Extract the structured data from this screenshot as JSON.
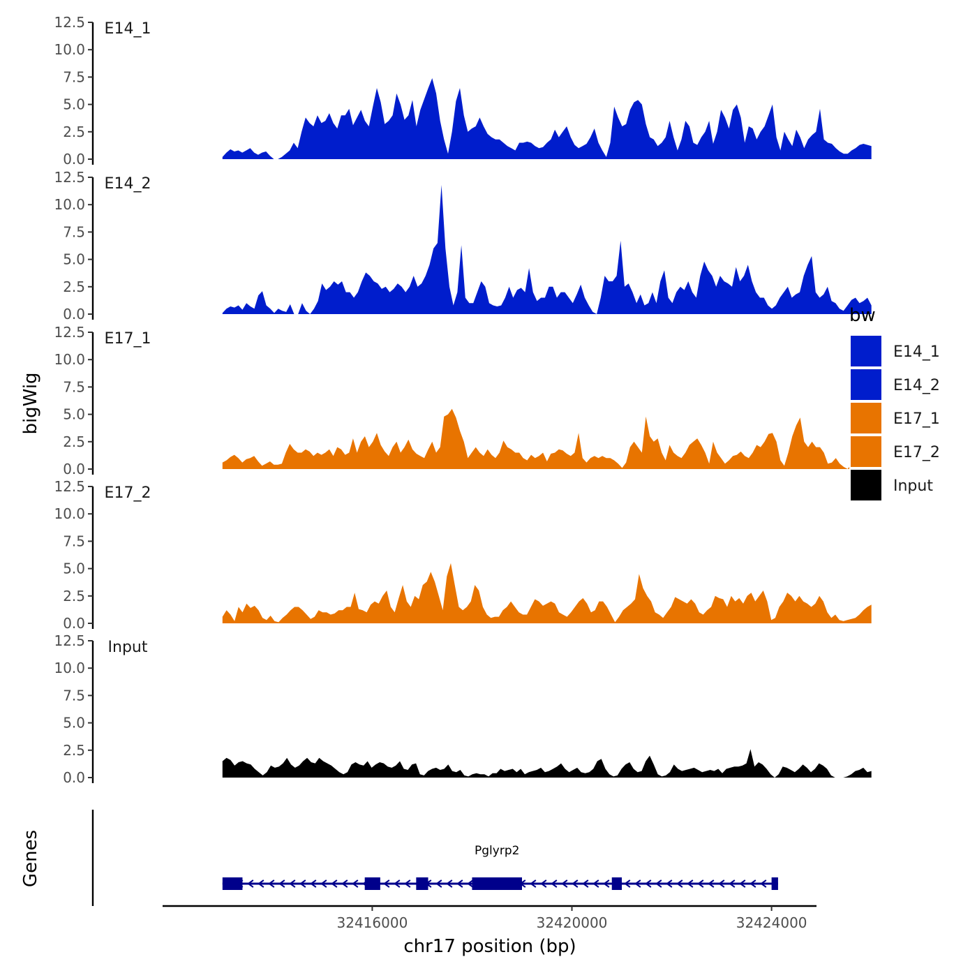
{
  "chart_data": {
    "type": "area",
    "title": "",
    "ylabel": "bigWig",
    "xlabel": "chr17 position (bp)",
    "ylim": [
      0,
      12.5
    ],
    "yticks": [
      "0.0",
      "2.5",
      "5.0",
      "7.5",
      "10.0",
      "12.5"
    ],
    "xlim": [
      32411800,
      32424900
    ],
    "xticks": [
      32416000,
      32420000,
      32424000
    ],
    "xtick_labels": [
      "32416000",
      "32420000",
      "32424000"
    ],
    "x_start": 32413000,
    "x_end": 32426000,
    "tracks": [
      {
        "name": "E14_1",
        "color": "#001DCC",
        "values": [
          0.2,
          0.6,
          0.9,
          0.7,
          0.8,
          0.6,
          0.8,
          1.0,
          0.6,
          0.4,
          0.6,
          0.7,
          0.3,
          0.0,
          0.0,
          0.2,
          0.5,
          0.8,
          1.5,
          1.0,
          2.5,
          3.8,
          3.3,
          3.0,
          4.0,
          3.3,
          3.5,
          4.2,
          3.3,
          2.8,
          4.0,
          4.0,
          4.6,
          3.1,
          3.8,
          4.5,
          3.5,
          3.0,
          4.8,
          6.5,
          5.2,
          3.2,
          3.5,
          4.0,
          6.0,
          5.0,
          3.6,
          4.0,
          5.4,
          3.0,
          4.5,
          5.5,
          6.5,
          7.4,
          6.0,
          3.5,
          1.8,
          0.5,
          2.5,
          5.3,
          6.5,
          4.0,
          2.5,
          2.8,
          3.0,
          3.8,
          3.0,
          2.3,
          2.0,
          1.8,
          1.8,
          1.5,
          1.2,
          1.0,
          0.8,
          1.5,
          1.5,
          1.6,
          1.5,
          1.2,
          1.0,
          1.1,
          1.5,
          1.8,
          2.7,
          2.0,
          2.5,
          3.0,
          2.0,
          1.3,
          1.0,
          1.2,
          1.4,
          2.0,
          2.8,
          1.5,
          0.8,
          0.2,
          1.5,
          4.8,
          3.8,
          3.0,
          3.2,
          4.5,
          5.2,
          5.4,
          5.0,
          3.2,
          2.0,
          1.8,
          1.2,
          1.5,
          2.0,
          3.5,
          2.0,
          0.8,
          1.8,
          3.5,
          3.0,
          1.5,
          1.3,
          2.0,
          2.5,
          3.5,
          1.4,
          2.5,
          4.5,
          3.8,
          2.8,
          4.5,
          5.0,
          3.8,
          1.5,
          3.0,
          2.8,
          1.8,
          2.5,
          3.0,
          4.0,
          5.0,
          2.0,
          0.8,
          2.5,
          1.8,
          1.2,
          2.7,
          2.0,
          1.0,
          1.8,
          2.2,
          2.5,
          4.6,
          1.8,
          1.5,
          1.4,
          1.0,
          0.7,
          0.5,
          0.5,
          0.8,
          1.0,
          1.3,
          1.4,
          1.3,
          1.2
        ]
      },
      {
        "name": "E14_2",
        "color": "#001DCC",
        "values": [
          0.1,
          0.5,
          0.7,
          0.6,
          0.8,
          0.4,
          1.0,
          0.7,
          0.5,
          1.7,
          2.1,
          0.8,
          0.5,
          0.1,
          0.5,
          0.3,
          0.2,
          0.9,
          0.0,
          0.0,
          1.0,
          0.3,
          0.0,
          0.5,
          1.2,
          2.8,
          2.2,
          2.5,
          3.0,
          2.7,
          3.0,
          2.0,
          2.0,
          1.5,
          2.0,
          3.0,
          3.8,
          3.5,
          3.0,
          2.8,
          2.3,
          2.5,
          2.0,
          2.3,
          2.8,
          2.5,
          2.0,
          2.5,
          3.5,
          2.5,
          2.8,
          3.5,
          4.5,
          6.0,
          6.5,
          11.8,
          6.0,
          2.5,
          0.8,
          2.0,
          6.3,
          1.5,
          1.0,
          1.0,
          2.0,
          3.0,
          2.5,
          1.0,
          0.8,
          0.7,
          0.8,
          1.5,
          2.5,
          1.5,
          2.2,
          2.4,
          2.0,
          4.2,
          2.0,
          1.2,
          1.5,
          1.5,
          2.5,
          2.5,
          1.5,
          2.0,
          2.0,
          1.5,
          1.0,
          1.8,
          2.7,
          1.5,
          0.8,
          0.2,
          0.0,
          1.5,
          3.5,
          3.0,
          3.0,
          3.5,
          6.7,
          2.5,
          2.8,
          2.0,
          1.0,
          1.8,
          0.8,
          1.0,
          2.0,
          1.0,
          3.0,
          4.0,
          1.5,
          1.0,
          2.0,
          2.5,
          2.2,
          3.0,
          2.0,
          1.5,
          3.5,
          4.8,
          4.0,
          3.5,
          2.5,
          3.5,
          3.0,
          2.8,
          2.5,
          4.3,
          3.0,
          3.5,
          4.5,
          3.0,
          2.0,
          1.5,
          1.5,
          0.8,
          0.5,
          0.8,
          1.5,
          2.0,
          2.5,
          1.5,
          1.8,
          2.0,
          3.5,
          4.5,
          5.3,
          2.0,
          1.5,
          1.8,
          2.5,
          1.2,
          1.0,
          0.5,
          0.3,
          0.8,
          1.3,
          1.5,
          1.0,
          1.2,
          1.5,
          0.8
        ]
      },
      {
        "name": "E17_1",
        "color": "#E87400",
        "values": [
          0.6,
          0.8,
          1.1,
          1.3,
          1.0,
          0.6,
          0.9,
          1.0,
          1.2,
          0.7,
          0.3,
          0.5,
          0.7,
          0.4,
          0.4,
          0.5,
          1.5,
          2.3,
          1.8,
          1.5,
          1.5,
          1.8,
          1.6,
          1.2,
          1.5,
          1.3,
          1.5,
          1.8,
          1.2,
          2.0,
          1.8,
          1.3,
          1.5,
          2.8,
          1.5,
          2.5,
          3.0,
          2.0,
          2.5,
          3.3,
          2.2,
          1.6,
          1.2,
          2.0,
          2.5,
          1.5,
          2.0,
          2.7,
          1.8,
          1.4,
          1.2,
          1.0,
          1.8,
          2.5,
          1.5,
          2.0,
          4.8,
          5.0,
          5.5,
          4.7,
          3.5,
          2.5,
          1.0,
          1.5,
          2.0,
          1.5,
          1.2,
          1.8,
          1.3,
          1.0,
          1.5,
          2.6,
          2.0,
          1.8,
          1.5,
          1.5,
          1.0,
          0.8,
          1.3,
          1.0,
          1.2,
          1.5,
          0.7,
          1.4,
          1.5,
          1.8,
          1.7,
          1.4,
          1.2,
          1.5,
          3.3,
          1.0,
          0.6,
          1.0,
          1.2,
          1.0,
          1.2,
          1.0,
          1.0,
          0.8,
          0.5,
          0.1,
          0.6,
          2.0,
          2.5,
          2.0,
          1.5,
          4.8,
          3.0,
          2.5,
          2.8,
          1.5,
          0.8,
          2.2,
          1.5,
          1.2,
          1.0,
          1.5,
          2.2,
          2.5,
          2.8,
          2.2,
          1.5,
          0.5,
          2.5,
          1.5,
          1.0,
          0.5,
          0.8,
          1.2,
          1.3,
          1.6,
          1.2,
          1.0,
          1.5,
          2.2,
          2.0,
          2.5,
          3.2,
          3.3,
          2.5,
          0.8,
          0.3,
          1.5,
          3.0,
          4.0,
          4.7,
          2.5,
          2.0,
          2.5,
          2.0,
          2.0,
          1.5,
          0.5,
          0.6,
          1.0,
          0.5,
          0.2,
          0.0,
          0.5,
          1.2,
          1.5,
          1.4,
          1.3,
          1.5
        ]
      },
      {
        "name": "E17_2",
        "color": "#E87400",
        "values": [
          0.6,
          1.2,
          0.8,
          0.2,
          1.5,
          1.0,
          1.8,
          1.4,
          1.6,
          1.2,
          0.5,
          0.3,
          0.7,
          0.2,
          0.1,
          0.5,
          0.8,
          1.2,
          1.5,
          1.5,
          1.2,
          0.8,
          0.4,
          0.6,
          1.2,
          1.0,
          1.0,
          0.8,
          0.9,
          1.2,
          1.2,
          1.5,
          1.5,
          2.8,
          1.3,
          1.2,
          1.0,
          1.7,
          2.0,
          1.8,
          2.5,
          3.0,
          1.5,
          1.0,
          2.3,
          3.5,
          2.0,
          1.5,
          2.5,
          2.2,
          3.5,
          3.8,
          4.7,
          3.8,
          2.5,
          1.2,
          4.3,
          5.5,
          3.5,
          1.5,
          1.2,
          1.5,
          2.0,
          3.5,
          3.0,
          1.5,
          0.8,
          0.5,
          0.6,
          0.6,
          1.2,
          1.5,
          2.0,
          1.5,
          1.0,
          0.8,
          0.8,
          1.5,
          2.2,
          2.0,
          1.6,
          1.8,
          2.0,
          1.8,
          1.0,
          0.8,
          0.6,
          1.0,
          1.5,
          2.0,
          2.3,
          1.8,
          1.0,
          1.2,
          2.0,
          2.0,
          1.5,
          0.8,
          0.1,
          0.6,
          1.2,
          1.5,
          1.8,
          2.2,
          4.5,
          3.2,
          2.5,
          2.0,
          1.0,
          0.8,
          0.5,
          1.0,
          1.5,
          2.4,
          2.2,
          2.0,
          1.8,
          2.2,
          1.8,
          1.0,
          0.8,
          1.2,
          1.5,
          2.5,
          2.3,
          2.2,
          1.5,
          2.5,
          2.0,
          2.3,
          1.8,
          2.5,
          2.8,
          2.0,
          2.5,
          3.0,
          2.0,
          0.3,
          0.5,
          1.5,
          2.0,
          2.8,
          2.5,
          2.0,
          2.5,
          2.0,
          1.8,
          1.5,
          1.8,
          2.5,
          2.0,
          1.0,
          0.5,
          0.8,
          0.3,
          0.2,
          0.3,
          0.4,
          0.5,
          0.8,
          1.2,
          1.5,
          1.7
        ]
      },
      {
        "name": "Input",
        "color": "#000000",
        "values": [
          1.5,
          1.8,
          1.6,
          1.1,
          1.4,
          1.5,
          1.3,
          1.2,
          0.8,
          0.5,
          0.2,
          0.5,
          1.1,
          0.9,
          1.0,
          1.3,
          1.8,
          1.2,
          0.9,
          1.1,
          1.5,
          1.8,
          1.4,
          1.3,
          1.8,
          1.5,
          1.3,
          1.1,
          0.8,
          0.5,
          0.3,
          0.5,
          1.2,
          1.4,
          1.2,
          1.1,
          1.5,
          0.9,
          1.2,
          1.4,
          1.3,
          1.0,
          0.9,
          1.1,
          1.5,
          0.8,
          0.7,
          1.2,
          1.3,
          0.3,
          0.2,
          0.6,
          0.8,
          0.9,
          0.7,
          0.8,
          1.2,
          0.6,
          0.5,
          0.7,
          0.2,
          0.1,
          0.3,
          0.4,
          0.3,
          0.3,
          0.1,
          0.4,
          0.4,
          0.8,
          0.6,
          0.7,
          0.8,
          0.5,
          0.8,
          0.3,
          0.5,
          0.6,
          0.7,
          0.9,
          0.5,
          0.6,
          0.8,
          1.0,
          1.3,
          0.8,
          0.5,
          0.7,
          0.9,
          0.5,
          0.4,
          0.5,
          0.8,
          1.5,
          1.7,
          0.8,
          0.3,
          0.1,
          0.2,
          0.8,
          1.2,
          1.4,
          0.8,
          0.5,
          0.6,
          1.5,
          2.0,
          1.2,
          0.3,
          0.1,
          0.2,
          0.5,
          1.2,
          0.8,
          0.6,
          0.7,
          0.8,
          0.9,
          0.7,
          0.5,
          0.6,
          0.7,
          0.6,
          0.8,
          0.4,
          0.8,
          0.9,
          1.0,
          1.0,
          1.1,
          1.3,
          2.6,
          1.0,
          1.4,
          1.2,
          0.8,
          0.3,
          0.0,
          0.3,
          1.0,
          0.9,
          0.7,
          0.5,
          0.8,
          1.2,
          0.9,
          0.5,
          0.8,
          1.3,
          1.1,
          0.8,
          0.2,
          0.0,
          0.0,
          0.0,
          0.1,
          0.3,
          0.6,
          0.7,
          0.9,
          0.5,
          0.6
        ]
      }
    ],
    "legend": {
      "title": "bw",
      "position": "right",
      "entries": [
        {
          "label": "E14_1",
          "color": "#001DCC"
        },
        {
          "label": "E14_2",
          "color": "#001DCC"
        },
        {
          "label": "E17_1",
          "color": "#E87400"
        },
        {
          "label": "E17_2",
          "color": "#E87400"
        },
        {
          "label": "Input",
          "color": "#000000"
        }
      ]
    },
    "genes_panel": {
      "ylabel": "Genes",
      "color": "#00008B",
      "gene": {
        "name": "Pglyrp2",
        "start": 32413000,
        "end": 32424130,
        "strand": "-",
        "exons": [
          [
            32413000,
            32413400
          ],
          [
            32415850,
            32416160
          ],
          [
            32416880,
            32417120
          ],
          [
            32418000,
            32419000
          ],
          [
            32420800,
            32421000
          ],
          [
            32424000,
            32424130
          ]
        ]
      }
    }
  }
}
